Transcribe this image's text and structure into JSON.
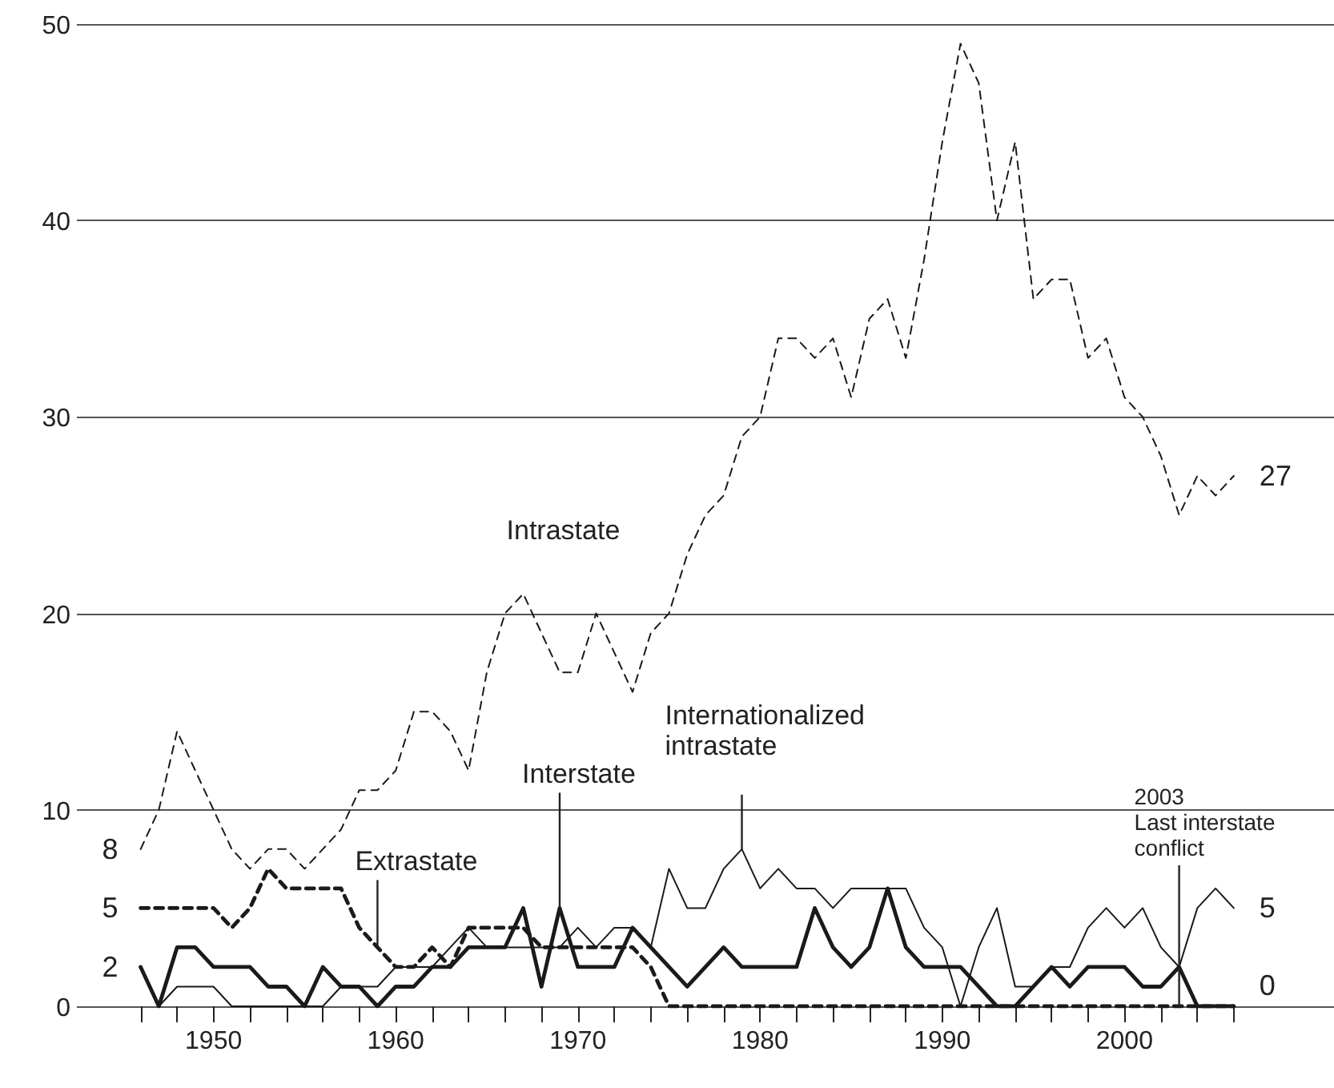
{
  "chart_data": {
    "type": "line",
    "x": [
      1946,
      1947,
      1948,
      1949,
      1950,
      1951,
      1952,
      1953,
      1954,
      1955,
      1956,
      1957,
      1958,
      1959,
      1960,
      1961,
      1962,
      1963,
      1964,
      1965,
      1966,
      1967,
      1968,
      1969,
      1970,
      1971,
      1972,
      1973,
      1974,
      1975,
      1976,
      1977,
      1978,
      1979,
      1980,
      1981,
      1982,
      1983,
      1984,
      1985,
      1986,
      1987,
      1988,
      1989,
      1990,
      1991,
      1992,
      1993,
      1994,
      1995,
      1996,
      1997,
      1998,
      1999,
      2000,
      2001,
      2002,
      2003,
      2004,
      2005,
      2006
    ],
    "series": [
      {
        "name": "Intrastate",
        "color": "#1a1a1a",
        "line_style": "dashed",
        "values": [
          8,
          10,
          14,
          12,
          10,
          8,
          7,
          8,
          8,
          7,
          8,
          9,
          11,
          11,
          12,
          15,
          15,
          14,
          12,
          17,
          20,
          21,
          19,
          17,
          17,
          20,
          18,
          16,
          19,
          20,
          23,
          25,
          26,
          29,
          30,
          34,
          34,
          33,
          34,
          31,
          35,
          36,
          33,
          38,
          44,
          49,
          47,
          40,
          44,
          36,
          37,
          37,
          33,
          34,
          31,
          30,
          28,
          25,
          27,
          26,
          27
        ],
        "value_labels": [
          "8",
          null,
          null,
          null,
          null,
          null,
          null,
          null,
          null,
          null,
          null,
          null,
          null,
          null,
          null,
          null,
          null,
          null,
          null,
          null,
          null,
          null,
          null,
          null,
          null,
          null,
          null,
          null,
          null,
          null,
          null,
          null,
          null,
          null,
          null,
          null,
          null,
          null,
          null,
          null,
          null,
          null,
          null,
          null,
          null,
          null,
          null,
          null,
          null,
          null,
          null,
          null,
          null,
          null,
          null,
          null,
          null,
          null,
          null,
          null,
          "27"
        ]
      },
      {
        "name": "Extrastate",
        "color": "#1a1a1a",
        "line_style": "dashed",
        "values": [
          5,
          5,
          5,
          5,
          5,
          4,
          5,
          7,
          6,
          6,
          6,
          6,
          4,
          3,
          2,
          2,
          3,
          2,
          4,
          4,
          4,
          4,
          3,
          3,
          3,
          3,
          3,
          3,
          2,
          0,
          0,
          0,
          0,
          0,
          0,
          0,
          0,
          0,
          0,
          0,
          0,
          0,
          0,
          0,
          0,
          0,
          0,
          0,
          0,
          0,
          0,
          0,
          0,
          0,
          0,
          0,
          0,
          0,
          0,
          0,
          0
        ],
        "value_labels": [
          "5",
          null,
          null,
          null,
          null,
          null,
          null,
          null,
          null,
          null,
          null,
          null,
          null,
          null,
          null,
          null,
          null,
          null,
          null,
          null,
          null,
          null,
          null,
          null,
          null,
          null,
          null,
          null,
          null,
          null,
          null,
          null,
          null,
          null,
          null,
          null,
          null,
          null,
          null,
          null,
          null,
          null,
          null,
          null,
          null,
          null,
          null,
          null,
          null,
          null,
          null,
          null,
          null,
          null,
          null,
          null,
          null,
          null,
          null,
          null,
          null
        ]
      },
      {
        "name": "Interstate",
        "color": "#1a1a1a",
        "line_style": "solid",
        "values": [
          2,
          0,
          3,
          3,
          2,
          2,
          2,
          1,
          1,
          0,
          2,
          1,
          1,
          0,
          1,
          1,
          2,
          2,
          3,
          3,
          3,
          5,
          1,
          5,
          2,
          2,
          2,
          4,
          3,
          2,
          1,
          2,
          3,
          2,
          2,
          2,
          2,
          5,
          3,
          2,
          3,
          6,
          3,
          2,
          2,
          2,
          1,
          0,
          0,
          1,
          2,
          1,
          2,
          2,
          2,
          1,
          1,
          2,
          0,
          0,
          0
        ],
        "value_labels": [
          "2",
          null,
          null,
          null,
          null,
          null,
          null,
          null,
          null,
          null,
          null,
          null,
          null,
          null,
          null,
          null,
          null,
          null,
          null,
          null,
          null,
          null,
          null,
          null,
          null,
          null,
          null,
          null,
          null,
          null,
          null,
          null,
          null,
          null,
          null,
          null,
          null,
          null,
          null,
          null,
          null,
          null,
          null,
          null,
          null,
          null,
          null,
          null,
          null,
          null,
          null,
          null,
          null,
          null,
          null,
          null,
          null,
          null,
          null,
          null,
          "0"
        ]
      },
      {
        "name": "Internationalized intrastate",
        "color": "#1a1a1a",
        "line_style": "solid",
        "values": [
          null,
          0,
          1,
          1,
          1,
          0,
          0,
          0,
          0,
          0,
          0,
          1,
          1,
          1,
          2,
          2,
          2,
          3,
          4,
          3,
          3,
          3,
          3,
          3,
          4,
          3,
          4,
          4,
          3,
          7,
          5,
          5,
          7,
          8,
          6,
          7,
          6,
          6,
          5,
          6,
          6,
          6,
          6,
          4,
          3,
          0,
          3,
          5,
          1,
          1,
          2,
          2,
          4,
          5,
          4,
          5,
          3,
          2,
          5,
          6,
          5
        ],
        "value_labels": [
          null,
          null,
          null,
          null,
          null,
          null,
          null,
          null,
          null,
          null,
          null,
          null,
          null,
          null,
          null,
          null,
          null,
          null,
          null,
          null,
          null,
          null,
          null,
          null,
          null,
          null,
          null,
          null,
          null,
          null,
          null,
          null,
          null,
          null,
          null,
          null,
          null,
          null,
          null,
          null,
          null,
          null,
          null,
          null,
          null,
          null,
          null,
          null,
          null,
          null,
          null,
          null,
          null,
          null,
          null,
          null,
          null,
          null,
          null,
          null,
          "5"
        ]
      }
    ],
    "xlim": [
      1942.5,
      2011.5
    ],
    "xticks": [
      {
        "value": 1946,
        "label": null
      },
      {
        "value": 1948,
        "label": null
      },
      1950,
      {
        "value": 1952,
        "label": null
      },
      {
        "value": 1954,
        "label": null
      },
      {
        "value": 1956,
        "label": null
      },
      {
        "value": 1958,
        "label": null
      },
      1960,
      {
        "value": 1962,
        "label": null
      },
      {
        "value": 1964,
        "label": null
      },
      {
        "value": 1966,
        "label": null
      },
      {
        "value": 1968,
        "label": null
      },
      1970,
      {
        "value": 1972,
        "label": null
      },
      {
        "value": 1974,
        "label": null
      },
      {
        "value": 1976,
        "label": null
      },
      {
        "value": 1978,
        "label": null
      },
      1980,
      {
        "value": 1982,
        "label": null
      },
      {
        "value": 1984,
        "label": null
      },
      {
        "value": 1986,
        "label": null
      },
      {
        "value": 1988,
        "label": null
      },
      1990,
      {
        "value": 1992,
        "label": null
      },
      {
        "value": 1994,
        "label": null
      },
      {
        "value": 1996,
        "label": null
      },
      {
        "value": 1998,
        "label": null
      },
      2000,
      {
        "value": 2002,
        "label": null
      },
      {
        "value": 2004,
        "label": null
      },
      {
        "value": 2006,
        "label": null
      }
    ],
    "ylim": [
      0,
      50
    ],
    "yticks": [
      0,
      10,
      20,
      30,
      40,
      50
    ],
    "grid": "y",
    "legend": false,
    "marker": "none",
    "ref_lines": [
      {
        "axis": "x",
        "value": 2003,
        "label": "2003\nLast interstate\nconflict"
      }
    ]
  }
}
